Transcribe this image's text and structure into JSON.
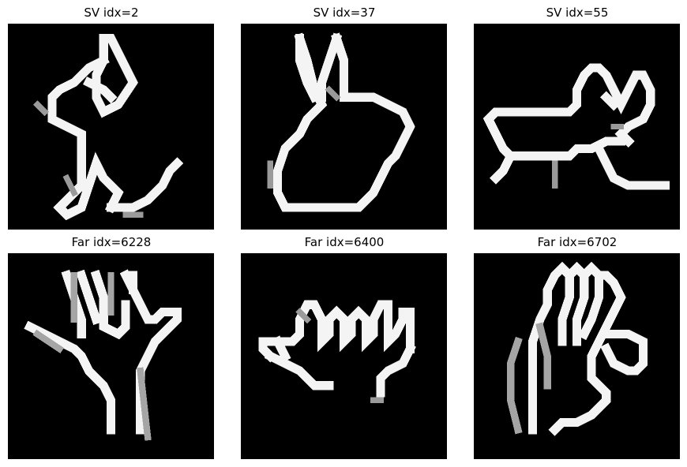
{
  "panels": [
    {
      "title": "SV idx=2",
      "content": "grayscale handwritten glyph resembling a seated figure"
    },
    {
      "title": "SV idx=37",
      "content": "grayscale handwritten glyph resembling a rabbit head"
    },
    {
      "title": "SV idx=55",
      "content": "grayscale handwritten glyph resembling a small animal"
    },
    {
      "title": "Far idx=6228",
      "content": "grayscale handwritten glyph resembling a hand"
    },
    {
      "title": "Far idx=6400",
      "content": "grayscale handwritten glyph resembling a hand"
    },
    {
      "title": "Far idx=6702",
      "content": "grayscale handwritten glyph resembling a hand"
    }
  ]
}
